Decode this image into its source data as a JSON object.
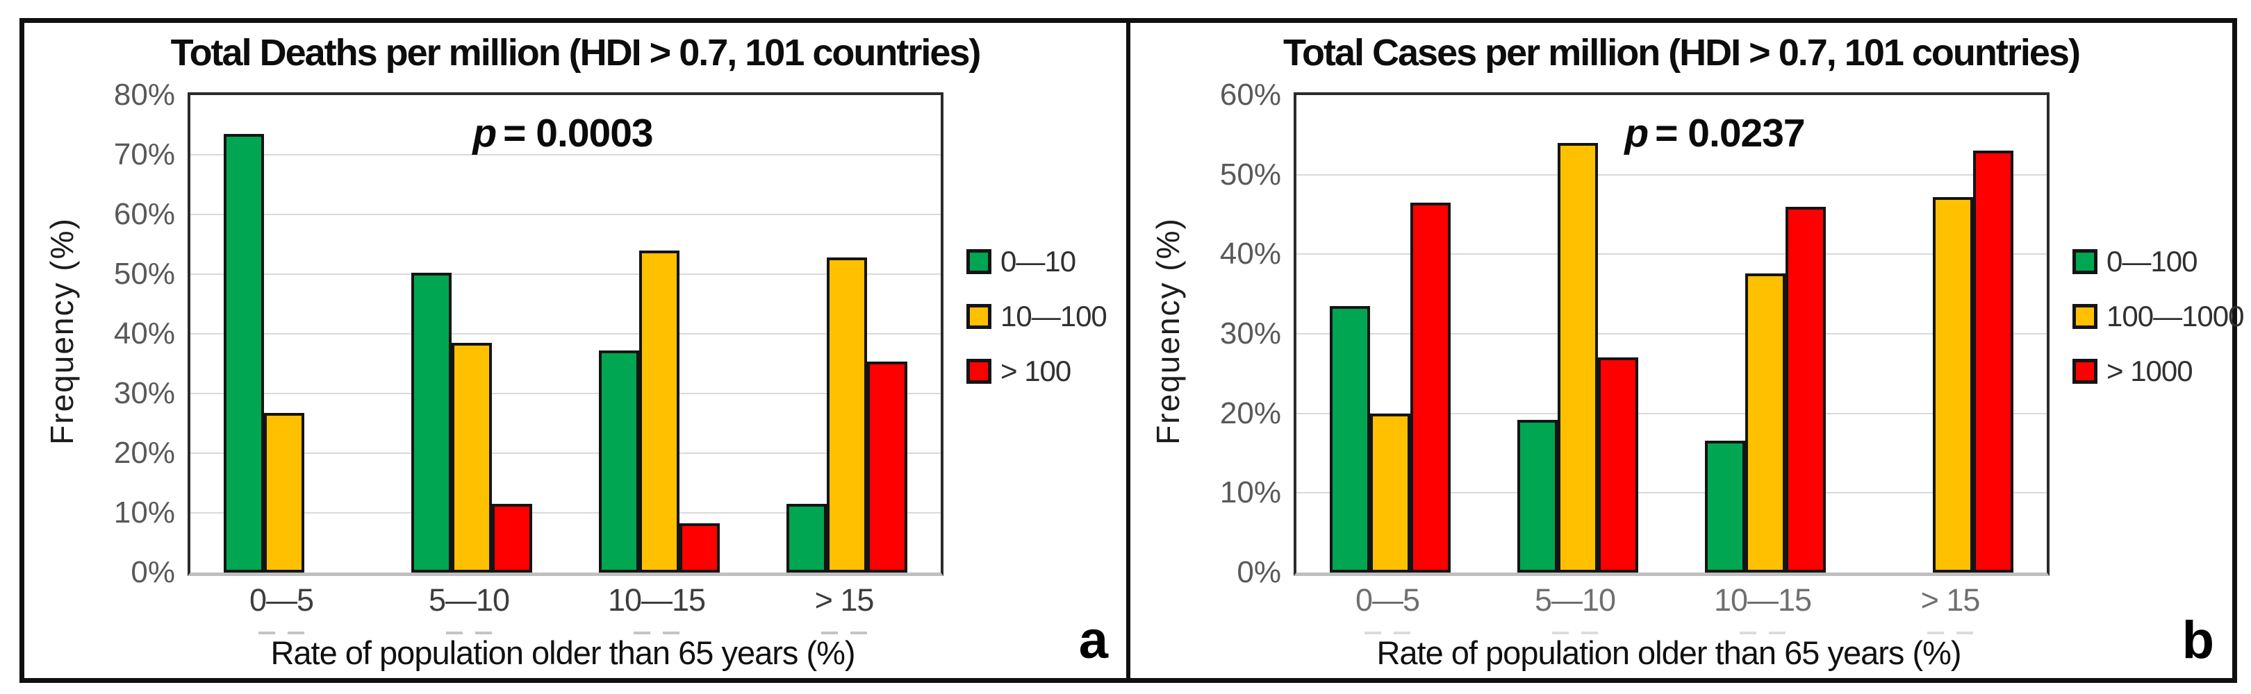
{
  "figure": {
    "description_visible_text_only": "Two-panel grouped bar figure",
    "colors": {
      "bar_green": "#00A651",
      "bar_yellow": "#FFC000",
      "bar_red": "#FF0000",
      "bar_border": "#141414",
      "gridline": "#D9D9D9",
      "tick_text": "#595959",
      "frame": "#101010"
    }
  },
  "chart_data": [
    {
      "type": "bar",
      "panel_letter": "a",
      "title": "Total Deaths per million (HDI > 0.7, 101 countries)",
      "p_sym": "p",
      "p_eq": "= 0.0003",
      "xlabel": "Rate of population older than 65 years (%)",
      "ylabel": "Frequency (%)",
      "categories": [
        "0—5",
        "5—10",
        "10—15",
        "> 15"
      ],
      "series": [
        {
          "name": "0—10",
          "color": "#00A651",
          "values": [
            73.5,
            50.2,
            37.2,
            11.5
          ]
        },
        {
          "name": "10—100",
          "color": "#FFC000",
          "values": [
            26.7,
            38.5,
            54.0,
            52.8
          ]
        },
        {
          "name": "> 100",
          "color": "#FF0000",
          "values": [
            0,
            11.5,
            8.2,
            35.3
          ]
        }
      ],
      "ylim": [
        0,
        80
      ],
      "ytick_step": 10,
      "ytick_format": "percent",
      "grid": true,
      "legend_position": "right"
    },
    {
      "type": "bar",
      "panel_letter": "b",
      "title": "Total Cases per million (HDI > 0.7, 101 countries)",
      "p_sym": "p",
      "p_eq": "= 0.0237",
      "xlabel": "Rate of population older than 65 years (%)",
      "ylabel": "Frequency (%)",
      "categories": [
        "0—5",
        "5—10",
        "10—15",
        "> 15"
      ],
      "series": [
        {
          "name": "0—100",
          "color": "#00A651",
          "values": [
            33.5,
            19.2,
            16.6,
            0
          ]
        },
        {
          "name": "100—1000",
          "color": "#FFC000",
          "values": [
            20.0,
            54.0,
            37.6,
            47.2
          ]
        },
        {
          "name": "> 1000",
          "color": "#FF0000",
          "values": [
            46.5,
            27.0,
            46.0,
            53.0
          ]
        }
      ],
      "ylim": [
        0,
        60
      ],
      "ytick_step": 10,
      "ytick_format": "percent",
      "grid": true,
      "legend_position": "right"
    }
  ]
}
